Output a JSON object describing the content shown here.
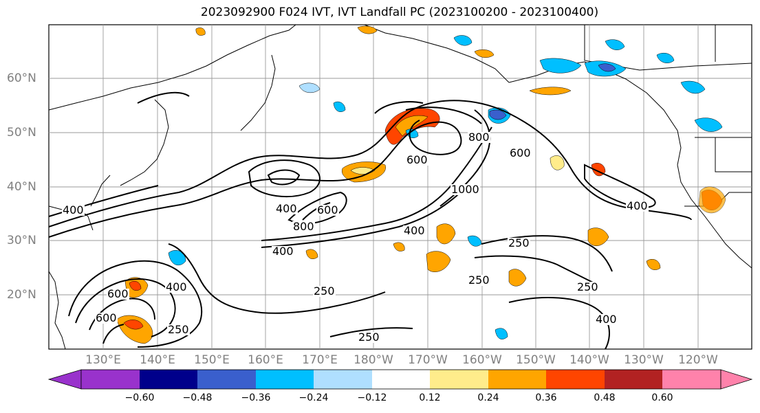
{
  "title": "2023092900 F024 IVT, IVT Landfall PC (2023100200 - 2023100400)",
  "lat_labels": [
    "60°N",
    "50°N",
    "40°N",
    "30°N",
    "20°N"
  ],
  "lon_labels": [
    "130°E",
    "140°E",
    "150°E",
    "160°E",
    "170°E",
    "180°W",
    "170°W",
    "160°W",
    "150°W",
    "140°W",
    "130°W",
    "120°W"
  ],
  "contour_labels": [
    "250",
    "250",
    "250",
    "250",
    "250",
    "250",
    "400",
    "400",
    "400",
    "400",
    "400",
    "400",
    "400",
    "600",
    "600",
    "600",
    "600",
    "600",
    "800",
    "800",
    "1000"
  ],
  "colorbar": {
    "colors": [
      "#9932cc",
      "#00008b",
      "#3a5fcd",
      "#00bfff",
      "#afdfff",
      "#ffffff",
      "#ffec8b",
      "#ffa500",
      "#ff4500",
      "#b22222",
      "#ff82ab"
    ],
    "tick_labels": [
      "−0.60",
      "−0.48",
      "−0.36",
      "−0.24",
      "−0.12",
      "0.12",
      "0.24",
      "0.36",
      "0.48",
      "0.60"
    ]
  }
}
